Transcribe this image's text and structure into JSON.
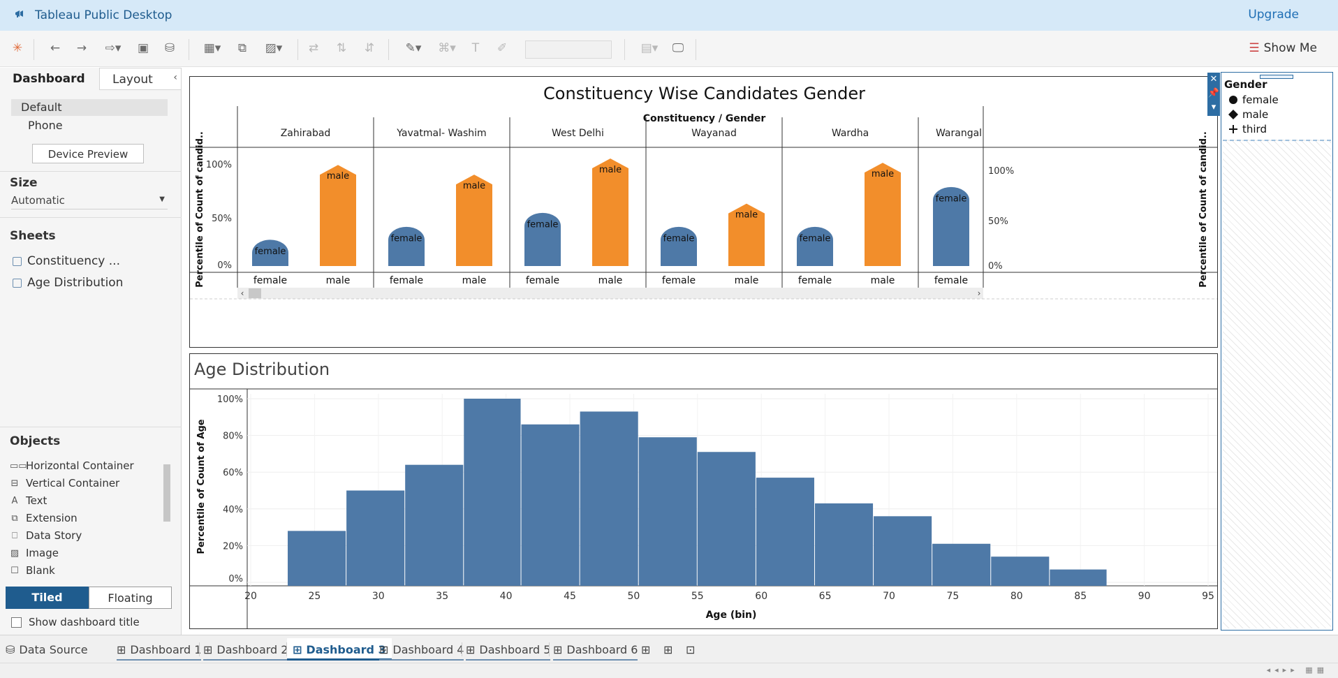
{
  "app": {
    "title": "Tableau Public Desktop",
    "upgrade": "Upgrade",
    "show_me": "Show Me"
  },
  "left_panel": {
    "tabs": [
      "Dashboard",
      "Layout"
    ],
    "devices": [
      "Default",
      "Phone"
    ],
    "device_preview": "Device Preview",
    "size_label": "Size",
    "size_value": "Automatic",
    "sheets_label": "Sheets",
    "sheets": [
      "Constituency ...",
      "Age Distribution"
    ],
    "objects_label": "Objects",
    "objects": [
      "Horizontal Container",
      "Vertical Container",
      "Text",
      "Extension",
      "Data Story",
      "Image",
      "Blank"
    ],
    "tiled": "Tiled",
    "floating": "Floating",
    "show_title": "Show dashboard title"
  },
  "chart1": {
    "title": "Constituency  Wise Candidates Gender",
    "column_header": "Constituency  /  Gender",
    "ylabel": "Percentile of Count of candid..",
    "yticks_left": [
      "100%",
      "50%",
      "0%"
    ],
    "yticks_right": [
      "100%",
      "50%",
      "0%"
    ]
  },
  "chart2": {
    "title": "Age Distribution",
    "ylabel": "Percentile of Count of Age",
    "xlabel": "Age (bin)"
  },
  "legend": {
    "title": "Gender",
    "items": [
      {
        "label": "female",
        "shape": "circle"
      },
      {
        "label": "male",
        "shape": "diamond"
      },
      {
        "label": "third",
        "shape": "plus"
      }
    ]
  },
  "bottom_tabs": {
    "data_source": "Data Source",
    "dashboards": [
      "Dashboard 1",
      "Dashboard 2",
      "Dashboard 3",
      "Dashboard 4",
      "Dashboard 5",
      "Dashboard 6"
    ],
    "active": "Dashboard 3"
  },
  "colors": {
    "female": "#4e79a7",
    "male": "#f28e2b",
    "accent": "#1f5c8e",
    "titlebar": "#d6e9f8"
  },
  "chart_data": [
    {
      "type": "bar",
      "title": "Constituency  Wise Candidates Gender",
      "ylabel": "Percentile of Count of candid..",
      "ylim": [
        0,
        100
      ],
      "constituencies": [
        {
          "name": "Zahirabad",
          "bars": [
            {
              "gender": "female",
              "value": 24
            },
            {
              "gender": "male",
              "value": 94
            }
          ]
        },
        {
          "name": "Yavatmal- Washim",
          "bars": [
            {
              "gender": "female",
              "value": 36
            },
            {
              "gender": "male",
              "value": 85
            }
          ]
        },
        {
          "name": "West Delhi",
          "bars": [
            {
              "gender": "female",
              "value": 49
            },
            {
              "gender": "male",
              "value": 100
            }
          ]
        },
        {
          "name": "Wayanad",
          "bars": [
            {
              "gender": "female",
              "value": 36
            },
            {
              "gender": "male",
              "value": 58
            }
          ]
        },
        {
          "name": "Wardha",
          "bars": [
            {
              "gender": "female",
              "value": 36
            },
            {
              "gender": "male",
              "value": 96
            }
          ]
        },
        {
          "name": "Warangal",
          "bars": [
            {
              "gender": "female",
              "value": 73
            }
          ]
        }
      ]
    },
    {
      "type": "bar",
      "title": "Age Distribution",
      "xlabel": "Age (bin)",
      "ylabel": "Percentile of Count of Age",
      "xlim": [
        20,
        95
      ],
      "ylim": [
        0,
        100
      ],
      "xticks": [
        20,
        25,
        30,
        35,
        40,
        45,
        50,
        55,
        60,
        65,
        70,
        75,
        80,
        85,
        90,
        95
      ],
      "yticks": [
        "0%",
        "20%",
        "40%",
        "60%",
        "80%",
        "100%"
      ],
      "bins": [
        {
          "start": 22.9,
          "end": 27.5,
          "value": 28
        },
        {
          "start": 27.5,
          "end": 32.1,
          "value": 50
        },
        {
          "start": 32.1,
          "end": 36.7,
          "value": 64
        },
        {
          "start": 36.7,
          "end": 41.2,
          "value": 100
        },
        {
          "start": 41.2,
          "end": 45.8,
          "value": 86
        },
        {
          "start": 45.8,
          "end": 50.4,
          "value": 93
        },
        {
          "start": 50.4,
          "end": 55.0,
          "value": 79
        },
        {
          "start": 55.0,
          "end": 59.6,
          "value": 71
        },
        {
          "start": 59.6,
          "end": 64.2,
          "value": 57
        },
        {
          "start": 64.2,
          "end": 68.8,
          "value": 43
        },
        {
          "start": 68.8,
          "end": 73.4,
          "value": 36
        },
        {
          "start": 73.4,
          "end": 78.0,
          "value": 21
        },
        {
          "start": 78.0,
          "end": 82.6,
          "value": 14
        },
        {
          "start": 82.6,
          "end": 87.1,
          "value": 7
        }
      ]
    }
  ]
}
